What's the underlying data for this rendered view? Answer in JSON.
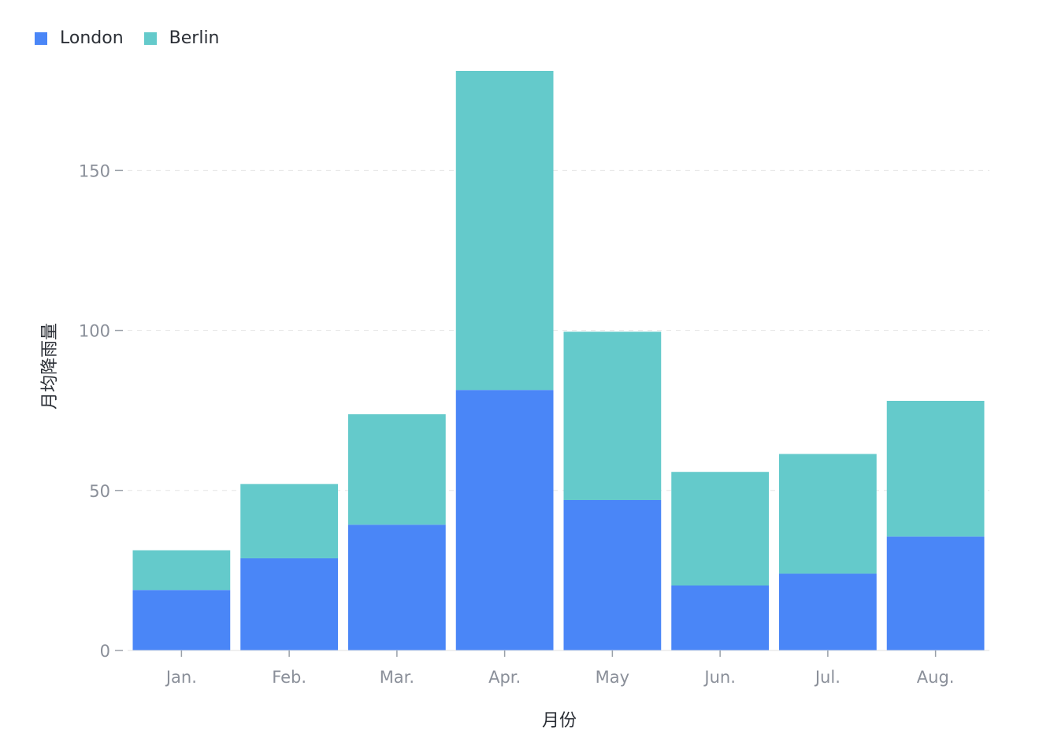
{
  "colors": {
    "London": "#4a86f7",
    "Berlin": "#64cacb",
    "axis_text": "#8a8f99",
    "label_text": "#2b2f36",
    "grid": "#e6e6e6"
  },
  "chart_data": {
    "type": "bar",
    "stacked": true,
    "title": "",
    "xlabel": "月份",
    "ylabel": "月均降雨量",
    "categories": [
      "Jan.",
      "Feb.",
      "Mar.",
      "Apr.",
      "May",
      "Jun.",
      "Jul.",
      "Aug."
    ],
    "series": [
      {
        "name": "London",
        "values": [
          18.9,
          28.8,
          39.3,
          81.4,
          47,
          20.3,
          24,
          35.6
        ]
      },
      {
        "name": "Berlin",
        "values": [
          12.4,
          23.2,
          34.5,
          99.7,
          52.6,
          35.5,
          37.4,
          42.4
        ]
      }
    ],
    "ylim": [
      0,
      181.1
    ],
    "yticks": [
      0,
      50,
      100,
      150
    ],
    "legend_position": "top-left",
    "grid": true
  }
}
